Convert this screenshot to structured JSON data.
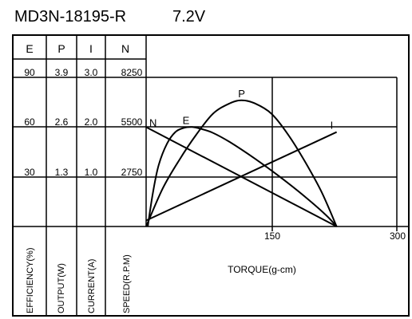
{
  "title": "MD3N-18195-R",
  "voltage": "7.2V",
  "columns": [
    {
      "head": "E",
      "label": "EFFICIENCY(%)",
      "ticks": [
        "90",
        "60",
        "30"
      ]
    },
    {
      "head": "P",
      "label": "OUTPUT(W)",
      "ticks": [
        "3.9",
        "2.6",
        "1.3"
      ]
    },
    {
      "head": "I",
      "label": "CURRENT(A)",
      "ticks": [
        "3.0",
        "2.0",
        "1.0"
      ]
    },
    {
      "head": "N",
      "label": "SPEED(R.P.M)",
      "ticks": [
        "8250",
        "5500",
        "2750"
      ]
    }
  ],
  "x_axis": {
    "label": "TORQUE(g-cm)",
    "ticks": [
      "150",
      "300"
    ]
  },
  "chart_data": {
    "type": "line",
    "title": "MD3N-18195-R   7.2V",
    "xlabel": "TORQUE(g-cm)",
    "xlim": [
      0,
      300
    ],
    "ylim_fraction": [
      0,
      1
    ],
    "x_ticks": [
      0,
      150,
      300
    ],
    "y_axes": [
      {
        "name": "E",
        "label": "EFFICIENCY(%)",
        "range": [
          0,
          90
        ],
        "ticks": [
          30,
          60,
          90
        ]
      },
      {
        "name": "P",
        "label": "OUTPUT(W)",
        "range": [
          0,
          3.9
        ],
        "ticks": [
          1.3,
          2.6,
          3.9
        ]
      },
      {
        "name": "I",
        "label": "CURRENT(A)",
        "range": [
          0,
          3.0
        ],
        "ticks": [
          1.0,
          2.0,
          3.0
        ]
      },
      {
        "name": "N",
        "label": "SPEED(R.P.M)",
        "range": [
          0,
          8250
        ],
        "ticks": [
          2750,
          5500,
          8250
        ]
      }
    ],
    "series": [
      {
        "name": "N",
        "axis": "N",
        "x": [
          0,
          228
        ],
        "y": [
          5500,
          0
        ]
      },
      {
        "name": "I",
        "axis": "I",
        "x": [
          0,
          228
        ],
        "y": [
          0.12,
          1.9
        ]
      },
      {
        "name": "P",
        "axis": "P",
        "x": [
          0,
          20,
          40,
          60,
          80,
          100,
          114,
          130,
          150,
          170,
          190,
          210,
          228
        ],
        "y": [
          0,
          1.0,
          1.75,
          2.4,
          2.95,
          3.22,
          3.3,
          3.22,
          2.95,
          2.4,
          1.7,
          0.9,
          0
        ]
      },
      {
        "name": "E",
        "axis": "E",
        "x": [
          2,
          8,
          15,
          25,
          35,
          45,
          55,
          65,
          80,
          100,
          130,
          160,
          190,
          215,
          228
        ],
        "y": [
          0,
          20,
          37,
          50,
          57,
          59.5,
          60,
          59,
          56.5,
          51,
          41,
          30,
          18,
          7,
          0
        ]
      }
    ],
    "curve_labels": [
      "N",
      "E",
      "P",
      "I"
    ]
  }
}
